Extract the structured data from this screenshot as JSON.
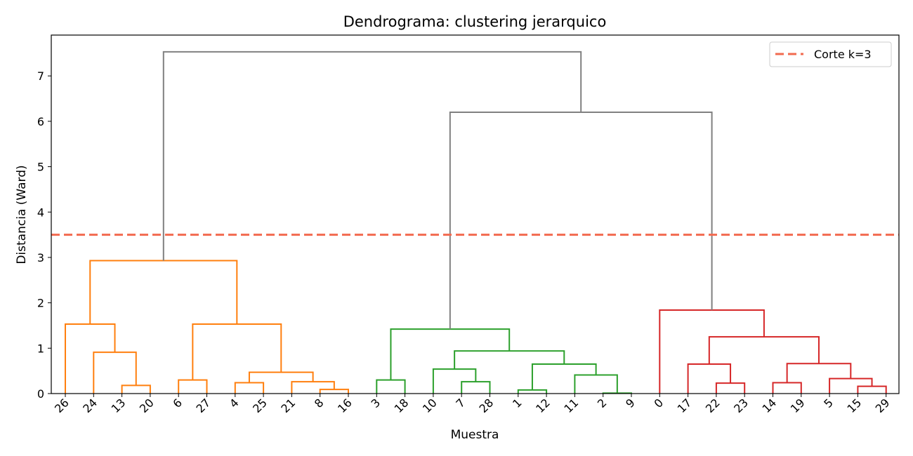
{
  "chart_data": {
    "type": "dendrogram",
    "title": "Dendrograma: clustering jerarquico",
    "xlabel": "Muestra",
    "ylabel": "Distancia (Ward)",
    "ylim": [
      0,
      7.9
    ],
    "yticks": [
      0,
      1,
      2,
      3,
      4,
      5,
      6,
      7
    ],
    "leaf_order": [
      "26",
      "24",
      "13",
      "20",
      "6",
      "27",
      "4",
      "25",
      "21",
      "8",
      "16",
      "3",
      "18",
      "10",
      "7",
      "28",
      "1",
      "12",
      "11",
      "2",
      "9",
      "0",
      "17",
      "22",
      "23",
      "14",
      "19",
      "5",
      "15",
      "29"
    ],
    "cut": {
      "y": 3.5,
      "label": "Corte k=3",
      "color": "#f26a4f"
    },
    "legend_position": "top-right",
    "colors": {
      "orange": "#ff7f0e",
      "green": "#2ca02c",
      "red": "#d62728",
      "gray": "#808080"
    },
    "merges": [
      {
        "id": "m1",
        "left": "13",
        "right": "20",
        "height": 0.18,
        "color": "orange"
      },
      {
        "id": "m2",
        "left": "24",
        "right": "m1",
        "height": 0.91,
        "color": "orange"
      },
      {
        "id": "m3",
        "left": "26",
        "right": "m2",
        "height": 1.53,
        "color": "orange"
      },
      {
        "id": "m4",
        "left": "6",
        "right": "27",
        "height": 0.3,
        "color": "orange"
      },
      {
        "id": "m5",
        "left": "4",
        "right": "25",
        "height": 0.24,
        "color": "orange"
      },
      {
        "id": "m6",
        "left": "8",
        "right": "16",
        "height": 0.09,
        "color": "orange"
      },
      {
        "id": "m7",
        "left": "21",
        "right": "m6",
        "height": 0.26,
        "color": "orange"
      },
      {
        "id": "m8",
        "left": "m5",
        "right": "m7",
        "height": 0.47,
        "color": "orange"
      },
      {
        "id": "m9",
        "left": "m4",
        "right": "m8",
        "height": 1.53,
        "color": "orange"
      },
      {
        "id": "m10",
        "left": "m3",
        "right": "m9",
        "height": 2.93,
        "color": "orange"
      },
      {
        "id": "m11",
        "left": "3",
        "right": "18",
        "height": 0.3,
        "color": "green"
      },
      {
        "id": "m12",
        "left": "7",
        "right": "28",
        "height": 0.26,
        "color": "green"
      },
      {
        "id": "m13",
        "left": "10",
        "right": "m12",
        "height": 0.54,
        "color": "green"
      },
      {
        "id": "m14",
        "left": "1",
        "right": "12",
        "height": 0.08,
        "color": "green"
      },
      {
        "id": "m15",
        "left": "2",
        "right": "9",
        "height": 0.01,
        "color": "green"
      },
      {
        "id": "m16",
        "left": "11",
        "right": "m15",
        "height": 0.41,
        "color": "green"
      },
      {
        "id": "m17",
        "left": "m14",
        "right": "m16",
        "height": 0.65,
        "color": "green"
      },
      {
        "id": "m18",
        "left": "m13",
        "right": "m17",
        "height": 0.94,
        "color": "green"
      },
      {
        "id": "m19",
        "left": "m11",
        "right": "m18",
        "height": 1.42,
        "color": "green"
      },
      {
        "id": "m20",
        "left": "22",
        "right": "23",
        "height": 0.23,
        "color": "red"
      },
      {
        "id": "m21",
        "left": "17",
        "right": "m20",
        "height": 0.65,
        "color": "red"
      },
      {
        "id": "m22",
        "left": "14",
        "right": "19",
        "height": 0.24,
        "color": "red"
      },
      {
        "id": "m23",
        "left": "15",
        "right": "29",
        "height": 0.16,
        "color": "red"
      },
      {
        "id": "m24",
        "left": "5",
        "right": "m23",
        "height": 0.33,
        "color": "red"
      },
      {
        "id": "m25",
        "left": "m22",
        "right": "m24",
        "height": 0.66,
        "color": "red"
      },
      {
        "id": "m26",
        "left": "m21",
        "right": "m25",
        "height": 1.25,
        "color": "red"
      },
      {
        "id": "m27",
        "left": "0",
        "right": "m26",
        "height": 1.84,
        "color": "red"
      },
      {
        "id": "m28",
        "left": "m19",
        "right": "m27",
        "height": 6.2,
        "color": "gray"
      },
      {
        "id": "m29",
        "left": "m10",
        "right": "m28",
        "height": 7.53,
        "color": "gray"
      }
    ]
  }
}
